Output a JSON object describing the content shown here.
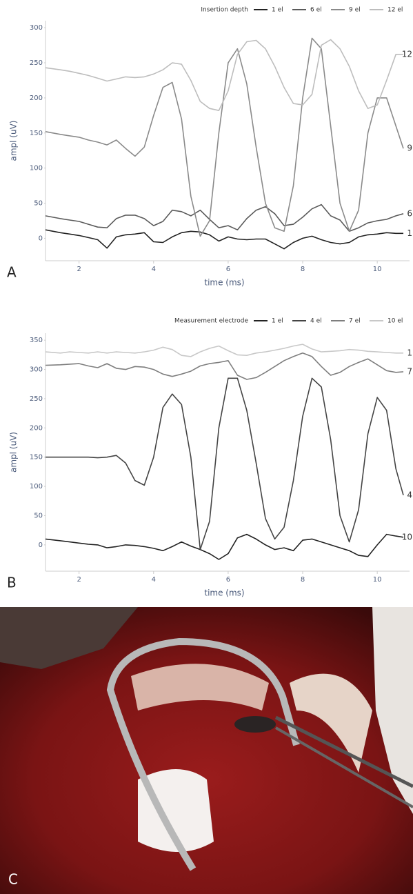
{
  "chart_data": [
    {
      "type": "line",
      "panel_label": "A",
      "legend_title": "Insertion depth",
      "x_label": "time (ms)",
      "y_label": "ampl (uV)",
      "xlim": [
        1.1,
        10.7
      ],
      "ylim": [
        -32,
        310
      ],
      "xticks": [
        2,
        4,
        6,
        8,
        10
      ],
      "yticks": [
        0,
        50,
        100,
        150,
        200,
        250,
        300
      ],
      "x": [
        1.1,
        1.5,
        1.75,
        2,
        2.25,
        2.5,
        2.75,
        3,
        3.25,
        3.5,
        3.75,
        4,
        4.25,
        4.5,
        4.75,
        5,
        5.25,
        5.5,
        5.75,
        6,
        6.25,
        6.5,
        6.75,
        7,
        7.25,
        7.5,
        7.75,
        8,
        8.25,
        8.5,
        8.75,
        9,
        9.25,
        9.5,
        9.75,
        10,
        10.25,
        10.5,
        10.7
      ],
      "series": [
        {
          "name": "1 el",
          "color": "#222222",
          "values": [
            12,
            8,
            6,
            4,
            1,
            -2,
            -14,
            2,
            5,
            6,
            8,
            -5,
            -6,
            2,
            8,
            10,
            9,
            5,
            -4,
            2,
            -1,
            -2,
            -1,
            -1,
            -8,
            -15,
            -6,
            0,
            3,
            -2,
            -6,
            -8,
            -6,
            2,
            5,
            6,
            8,
            7,
            7
          ]
        },
        {
          "name": "6 el",
          "color": "#5a5a5a",
          "values": [
            32,
            28,
            26,
            24,
            20,
            16,
            15,
            28,
            33,
            33,
            28,
            18,
            24,
            40,
            38,
            32,
            40,
            27,
            15,
            18,
            12,
            28,
            40,
            45,
            35,
            18,
            20,
            30,
            42,
            48,
            32,
            26,
            10,
            15,
            22,
            25,
            27,
            32,
            35
          ]
        },
        {
          "name": "9 el",
          "color": "#8a8a8a",
          "values": [
            152,
            148,
            146,
            144,
            140,
            137,
            133,
            140,
            128,
            117,
            130,
            175,
            215,
            222,
            170,
            60,
            3,
            25,
            150,
            250,
            270,
            220,
            130,
            50,
            15,
            10,
            75,
            200,
            285,
            270,
            160,
            50,
            10,
            40,
            150,
            200,
            200,
            160,
            128
          ]
        },
        {
          "name": "12 el",
          "color": "#bdbdbd",
          "values": [
            243,
            240,
            238,
            235,
            232,
            228,
            224,
            227,
            230,
            229,
            230,
            234,
            240,
            250,
            248,
            225,
            195,
            185,
            182,
            210,
            262,
            280,
            282,
            270,
            245,
            215,
            192,
            190,
            205,
            275,
            283,
            270,
            245,
            210,
            185,
            190,
            225,
            262,
            262
          ]
        }
      ],
      "end_labels": [
        "1",
        "6",
        "9",
        "12"
      ]
    },
    {
      "type": "line",
      "panel_label": "B",
      "legend_title": "Measurement electrode",
      "x_label": "time (ms)",
      "y_label": "ampl (uV)",
      "xlim": [
        1.1,
        10.7
      ],
      "ylim": [
        -45,
        362
      ],
      "xticks": [
        2,
        4,
        6,
        8,
        10
      ],
      "yticks": [
        0,
        50,
        100,
        150,
        200,
        250,
        300,
        350
      ],
      "x": [
        1.1,
        1.5,
        1.75,
        2,
        2.25,
        2.5,
        2.75,
        3,
        3.25,
        3.5,
        3.75,
        4,
        4.25,
        4.5,
        4.75,
        5,
        5.25,
        5.5,
        5.75,
        6,
        6.25,
        6.5,
        6.75,
        7,
        7.25,
        7.5,
        7.75,
        8,
        8.25,
        8.5,
        8.75,
        9,
        9.25,
        9.5,
        9.75,
        10,
        10.25,
        10.5,
        10.7
      ],
      "series": [
        {
          "name": "1 el",
          "color": "#222222",
          "values": [
            10,
            7,
            5,
            3,
            1,
            0,
            -5,
            -3,
            0,
            -1,
            -3,
            -6,
            -10,
            -3,
            5,
            -2,
            -8,
            -15,
            -25,
            -15,
            12,
            18,
            10,
            0,
            -8,
            -5,
            -10,
            8,
            10,
            5,
            0,
            -5,
            -10,
            -18,
            -20,
            0,
            18,
            15,
            13
          ]
        },
        {
          "name": "4 el",
          "color": "#444444",
          "values": [
            150,
            150,
            150,
            150,
            150,
            149,
            150,
            153,
            140,
            110,
            102,
            150,
            235,
            258,
            240,
            150,
            -8,
            40,
            200,
            285,
            285,
            230,
            140,
            45,
            10,
            30,
            110,
            220,
            285,
            270,
            180,
            50,
            5,
            60,
            190,
            252,
            230,
            130,
            85
          ]
        },
        {
          "name": "7 el",
          "color": "#7e7e7e",
          "values": [
            307,
            308,
            309,
            310,
            306,
            303,
            310,
            302,
            300,
            305,
            304,
            300,
            292,
            288,
            292,
            297,
            306,
            310,
            312,
            315,
            290,
            283,
            286,
            295,
            305,
            315,
            322,
            328,
            322,
            305,
            290,
            295,
            305,
            312,
            318,
            308,
            298,
            295,
            296
          ]
        },
        {
          "name": "10 el",
          "color": "#c8c8c8",
          "values": [
            330,
            328,
            330,
            329,
            328,
            330,
            328,
            330,
            329,
            328,
            330,
            333,
            338,
            334,
            324,
            322,
            330,
            336,
            340,
            332,
            325,
            324,
            328,
            330,
            333,
            336,
            340,
            343,
            335,
            330,
            331,
            332,
            334,
            333,
            331,
            330,
            329,
            328,
            328
          ]
        }
      ],
      "end_labels": [
        "10",
        "4",
        "7",
        "1"
      ]
    }
  ],
  "photo": {
    "panel_label": "C"
  }
}
